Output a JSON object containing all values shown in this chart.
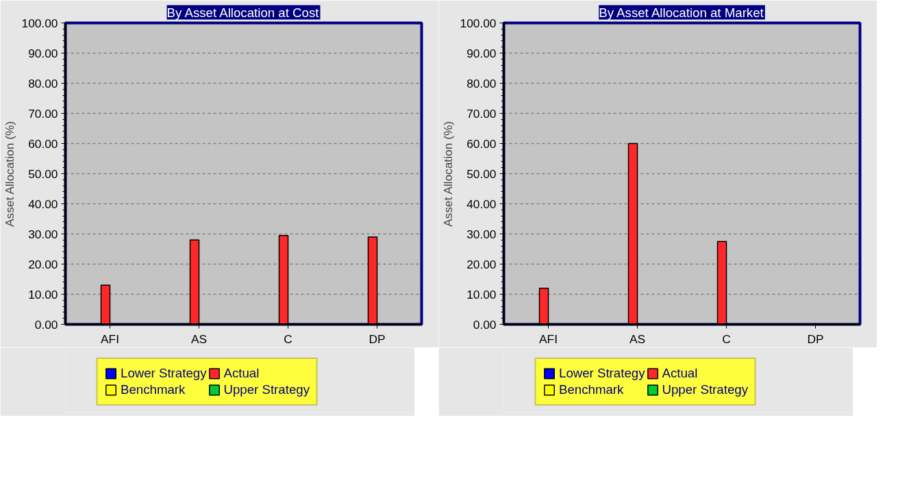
{
  "chart_data": [
    {
      "type": "bar",
      "title": "By Asset Allocation at Cost",
      "ylabel": "Asset Allocation (%)",
      "categories": [
        "AFI",
        "AS",
        "C",
        "DP"
      ],
      "series": [
        {
          "name": "Lower Strategy",
          "color": "#0000ff",
          "values": [
            0,
            0,
            0,
            0
          ]
        },
        {
          "name": "Actual",
          "color": "#ff2828",
          "values": [
            13,
            28,
            29.5,
            29
          ]
        },
        {
          "name": "Benchmark",
          "color": "#ffff00",
          "values": [
            0,
            0,
            0,
            0
          ]
        },
        {
          "name": "Upper Strategy",
          "color": "#00cc33",
          "values": [
            0,
            0,
            0,
            0
          ]
        }
      ],
      "ylim": [
        0,
        100
      ],
      "yticks": [
        {
          "value": 0,
          "label": "0.00"
        },
        {
          "value": 10,
          "label": "10.00"
        },
        {
          "value": 20,
          "label": "20.00"
        },
        {
          "value": 30,
          "label": "30.00"
        },
        {
          "value": 40,
          "label": "40.00"
        },
        {
          "value": 50,
          "label": "50.00"
        },
        {
          "value": 60,
          "label": "60.00"
        },
        {
          "value": 70,
          "label": "70.00"
        },
        {
          "value": 80,
          "label": "80.00"
        },
        {
          "value": 90,
          "label": "90.00"
        },
        {
          "value": 100,
          "label": "100.00"
        }
      ],
      "grid": "y",
      "legend": "bottom"
    },
    {
      "type": "bar",
      "title": "By Asset Allocation at Market",
      "ylabel": "Asset Allocation (%)",
      "categories": [
        "AFI",
        "AS",
        "C",
        "DP"
      ],
      "series": [
        {
          "name": "Lower Strategy",
          "color": "#0000ff",
          "values": [
            0,
            0,
            0,
            0
          ]
        },
        {
          "name": "Actual",
          "color": "#ff2828",
          "values": [
            12,
            60,
            27.5,
            0
          ]
        },
        {
          "name": "Benchmark",
          "color": "#ffff00",
          "values": [
            0,
            0,
            0,
            0
          ]
        },
        {
          "name": "Upper Strategy",
          "color": "#00cc33",
          "values": [
            0,
            0,
            0,
            0
          ]
        }
      ],
      "ylim": [
        0,
        100
      ],
      "yticks": [
        {
          "value": 0,
          "label": "0.00"
        },
        {
          "value": 10,
          "label": "10.00"
        },
        {
          "value": 20,
          "label": "20.00"
        },
        {
          "value": 30,
          "label": "30.00"
        },
        {
          "value": 40,
          "label": "40.00"
        },
        {
          "value": 50,
          "label": "50.00"
        },
        {
          "value": 60,
          "label": "60.00"
        },
        {
          "value": 70,
          "label": "70.00"
        },
        {
          "value": 80,
          "label": "80.00"
        },
        {
          "value": 90,
          "label": "90.00"
        },
        {
          "value": 100,
          "label": "100.00"
        }
      ],
      "grid": "y",
      "legend": "bottom"
    }
  ]
}
